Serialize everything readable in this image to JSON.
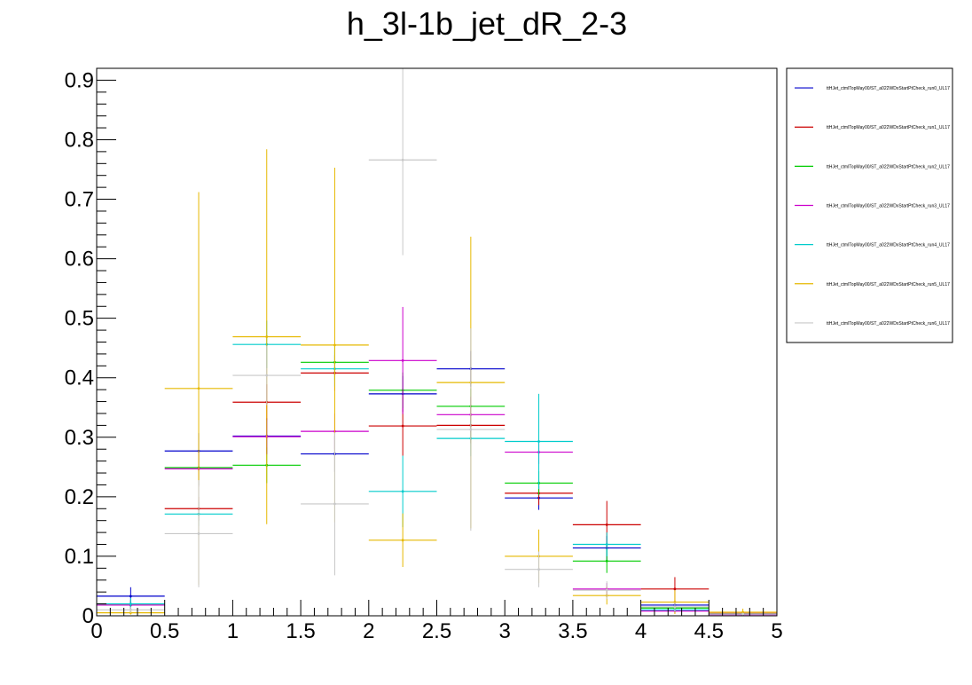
{
  "chart_data": {
    "type": "scatter",
    "title": "h_3l-1b_jet_dR_2-3",
    "xlabel": "",
    "ylabel": "",
    "xlim": [
      0,
      5
    ],
    "ylim": [
      0,
      0.92
    ],
    "bin_edges": [
      0,
      0.5,
      1,
      1.5,
      2,
      2.5,
      3,
      3.5,
      4,
      4.5,
      5
    ],
    "x_ticks": [
      "0",
      "0.5",
      "1",
      "1.5",
      "2",
      "2.5",
      "3",
      "3.5",
      "4",
      "4.5",
      "5"
    ],
    "y_ticks": [
      "0",
      "0.1",
      "0.2",
      "0.3",
      "0.4",
      "0.5",
      "0.6",
      "0.7",
      "0.8",
      "0.9"
    ],
    "y_tick_values": [
      0,
      0.1,
      0.2,
      0.3,
      0.4,
      0.5,
      0.6,
      0.7,
      0.8,
      0.9
    ],
    "legend_position": "top-right",
    "grid": false,
    "series": [
      {
        "name": "ttHJet_ctmlTopMay00/ST_a022WDxStartPtCheck_run0_UL17",
        "color": "#0000cc",
        "values": [
          0.033,
          0.277,
          0.302,
          0.272,
          0.373,
          0.415,
          0.198,
          0.114,
          0.018,
          0.003
        ],
        "errors": [
          0.015,
          0.03,
          0.03,
          0.03,
          0.03,
          0.03,
          0.02,
          0.02,
          0.005,
          0.002
        ]
      },
      {
        "name": "ttHJet_ctmlTopMay00/ST_a022WDxStartPtCheck_run1_UL17",
        "color": "#cc0000",
        "values": [
          0.018,
          0.18,
          0.359,
          0.408,
          0.319,
          0.32,
          0.206,
          0.153,
          0.045,
          0.004
        ],
        "errors": [
          0.008,
          0.02,
          0.03,
          0.03,
          0.05,
          0.03,
          0.02,
          0.04,
          0.02,
          0.002
        ]
      },
      {
        "name": "ttHJet_ctmlTopMay00/ST_a022WDxStartPtCheck_run2_UL17",
        "color": "#00cc00",
        "values": [
          0.018,
          0.249,
          0.253,
          0.426,
          0.379,
          0.352,
          0.223,
          0.092,
          0.013,
          0.003
        ],
        "errors": [
          0.008,
          0.03,
          0.03,
          0.03,
          0.03,
          0.03,
          0.02,
          0.02,
          0.005,
          0.002
        ]
      },
      {
        "name": "ttHJet_ctmlTopMay00/ST_a022WDxStartPtCheck_run3_UL17",
        "color": "#cc00cc",
        "values": [
          0.018,
          0.247,
          0.301,
          0.31,
          0.429,
          0.338,
          0.275,
          0.045,
          0.008,
          0.002
        ],
        "errors": [
          0.008,
          0.03,
          0.03,
          0.03,
          0.09,
          0.03,
          0.02,
          0.01,
          0.004,
          0.002
        ]
      },
      {
        "name": "ttHJet_ctmlTopMay00/ST_a022WDxStartPtCheck_run4_UL17",
        "color": "#00cccc",
        "values": [
          0.02,
          0.171,
          0.456,
          0.415,
          0.209,
          0.298,
          0.293,
          0.12,
          0.01,
          0.003
        ],
        "errors": [
          0.01,
          0.02,
          0.04,
          0.03,
          0.06,
          0.03,
          0.08,
          0.02,
          0.004,
          0.002
        ]
      },
      {
        "name": "ttHJet_ctmlTopMay00/ST_a022WDxStartPtCheck_run5_UL17",
        "color": "#e6b800",
        "values": [
          0.005,
          0.382,
          0.469,
          0.455,
          0.127,
          0.392,
          0.1,
          0.034,
          0.023,
          0.006
        ],
        "errors": [
          0.003,
          0.33,
          0.315,
          0.298,
          0.045,
          0.245,
          0.045,
          0.015,
          0.02,
          0.006
        ]
      },
      {
        "name": "ttHJet_ctmlTopMay00/ST_a022WDxStartPtCheck_run6_UL17",
        "color": "#c8c8c8",
        "values": [
          0.01,
          0.138,
          0.404,
          0.188,
          0.766,
          0.313,
          0.078,
          0.043,
          0.015,
          0.003
        ],
        "errors": [
          0.005,
          0.09,
          0.05,
          0.12,
          0.16,
          0.17,
          0.03,
          0.015,
          0.008,
          0.002
        ]
      }
    ]
  }
}
